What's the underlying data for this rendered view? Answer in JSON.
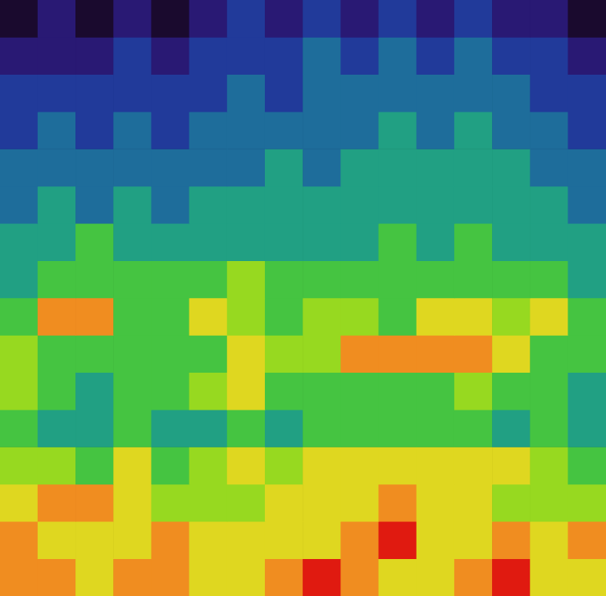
{
  "chart_data": {
    "type": "heatmap",
    "tick_labels": false,
    "cells": [
      [
        1,
        2,
        1,
        2,
        1,
        2,
        3,
        2,
        3,
        2,
        3,
        2,
        3,
        2,
        2,
        1
      ],
      [
        2,
        2,
        2,
        3,
        2,
        3,
        3,
        3,
        4,
        3,
        4,
        3,
        4,
        3,
        3,
        2
      ],
      [
        3,
        3,
        3,
        3,
        3,
        3,
        4,
        3,
        4,
        4,
        4,
        4,
        4,
        4,
        3,
        3
      ],
      [
        3,
        4,
        3,
        4,
        3,
        4,
        4,
        4,
        4,
        4,
        5,
        4,
        5,
        4,
        4,
        3
      ],
      [
        4,
        4,
        4,
        4,
        4,
        4,
        4,
        5,
        4,
        5,
        5,
        5,
        5,
        5,
        4,
        4
      ],
      [
        4,
        5,
        4,
        5,
        4,
        5,
        5,
        5,
        5,
        5,
        5,
        5,
        5,
        5,
        5,
        4
      ],
      [
        5,
        5,
        6,
        5,
        5,
        5,
        5,
        5,
        5,
        5,
        6,
        5,
        6,
        5,
        5,
        5
      ],
      [
        5,
        6,
        6,
        6,
        6,
        6,
        7,
        6,
        6,
        6,
        6,
        6,
        6,
        6,
        6,
        5
      ],
      [
        6,
        9,
        9,
        6,
        6,
        8,
        7,
        6,
        7,
        7,
        6,
        8,
        8,
        7,
        8,
        6
      ],
      [
        7,
        6,
        6,
        6,
        6,
        6,
        8,
        7,
        7,
        9,
        9,
        9,
        9,
        8,
        6,
        6
      ],
      [
        7,
        6,
        5,
        6,
        6,
        7,
        8,
        6,
        6,
        6,
        6,
        6,
        7,
        6,
        6,
        5
      ],
      [
        6,
        5,
        5,
        6,
        5,
        5,
        6,
        5,
        6,
        6,
        6,
        6,
        6,
        5,
        6,
        5
      ],
      [
        7,
        7,
        6,
        8,
        6,
        7,
        8,
        7,
        8,
        8,
        8,
        8,
        8,
        8,
        7,
        6
      ],
      [
        8,
        9,
        9,
        8,
        7,
        7,
        7,
        8,
        8,
        8,
        9,
        8,
        8,
        7,
        7,
        7
      ],
      [
        9,
        8,
        8,
        8,
        9,
        8,
        8,
        8,
        8,
        9,
        10,
        8,
        8,
        9,
        8,
        9
      ],
      [
        9,
        9,
        8,
        9,
        9,
        8,
        8,
        9,
        10,
        9,
        8,
        8,
        9,
        10,
        8,
        8
      ]
    ]
  }
}
